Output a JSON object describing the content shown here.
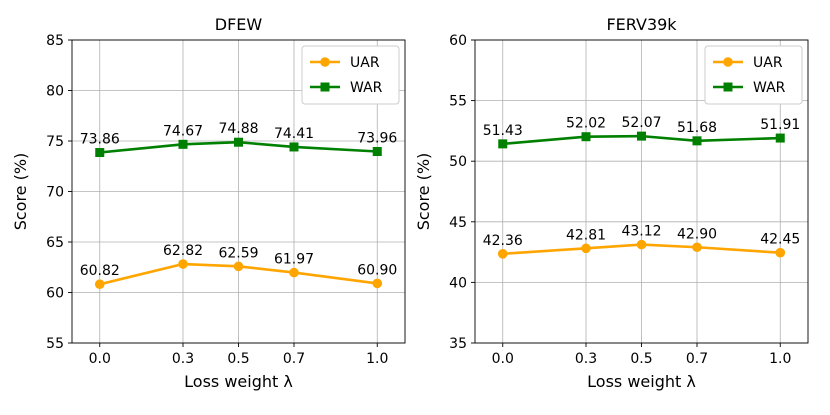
{
  "colors": {
    "uar": "#FFA500",
    "war": "#008000"
  },
  "chart_data": [
    {
      "type": "line",
      "title": "DFEW",
      "xlabel": "Loss weight λ",
      "ylabel": "Score (%)",
      "x": [
        0.0,
        0.3,
        0.5,
        0.7,
        1.0
      ],
      "xtick_labels": [
        "0.0",
        "0.3",
        "0.5",
        "0.7",
        "1.0"
      ],
      "ylim": [
        55,
        85
      ],
      "yticks": [
        55,
        60,
        65,
        70,
        75,
        80,
        85
      ],
      "series": [
        {
          "name": "UAR",
          "marker": "circle",
          "values": [
            60.82,
            62.82,
            62.59,
            61.97,
            60.9
          ],
          "labels": [
            "60.82",
            "62.82",
            "62.59",
            "61.97",
            "60.90"
          ]
        },
        {
          "name": "WAR",
          "marker": "square",
          "values": [
            73.86,
            74.67,
            74.88,
            74.41,
            73.96
          ],
          "labels": [
            "73.86",
            "74.67",
            "74.88",
            "74.41",
            "73.96"
          ]
        }
      ],
      "legend": "top-right",
      "grid": true
    },
    {
      "type": "line",
      "title": "FERV39k",
      "xlabel": "Loss weight λ",
      "ylabel": "Score (%)",
      "x": [
        0.0,
        0.3,
        0.5,
        0.7,
        1.0
      ],
      "xtick_labels": [
        "0.0",
        "0.3",
        "0.5",
        "0.7",
        "1.0"
      ],
      "ylim": [
        35,
        60
      ],
      "yticks": [
        35,
        40,
        45,
        50,
        55,
        60
      ],
      "series": [
        {
          "name": "UAR",
          "marker": "circle",
          "values": [
            42.36,
            42.81,
            43.12,
            42.9,
            42.45
          ],
          "labels": [
            "42.36",
            "42.81",
            "43.12",
            "42.90",
            "42.45"
          ]
        },
        {
          "name": "WAR",
          "marker": "square",
          "values": [
            51.43,
            52.02,
            52.07,
            51.68,
            51.91
          ],
          "labels": [
            "51.43",
            "52.02",
            "52.07",
            "51.68",
            "51.91"
          ]
        }
      ],
      "legend": "top-right",
      "grid": true
    }
  ]
}
